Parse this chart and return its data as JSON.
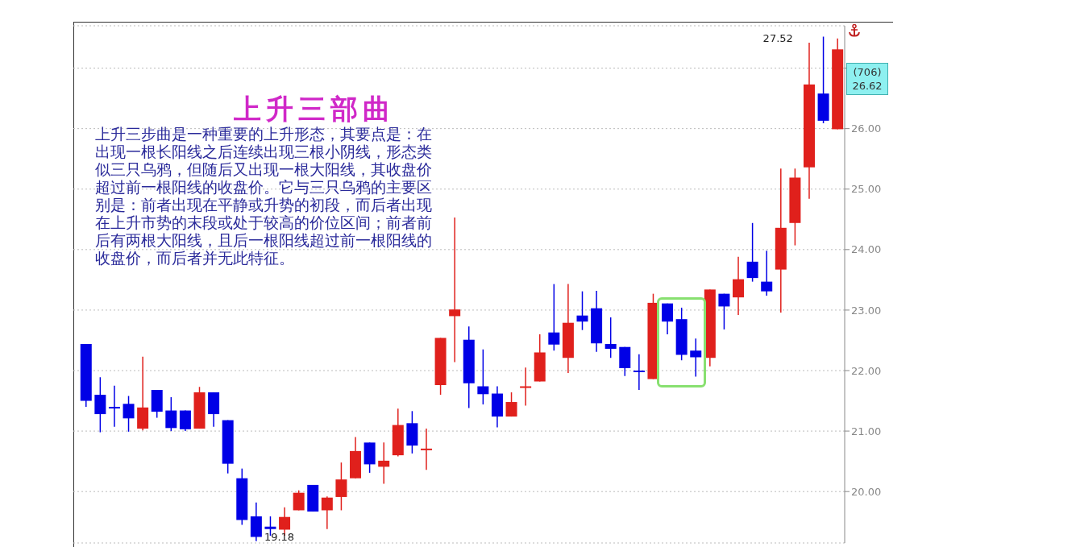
{
  "chart_data": {
    "type": "candlestick",
    "title": "上升三部曲",
    "categories": [
      null,
      null,
      null,
      null,
      null,
      null,
      null,
      null,
      null,
      null,
      null,
      null,
      null,
      null,
      null,
      null,
      null,
      null,
      null,
      null,
      null,
      null,
      null,
      null,
      null,
      null,
      null,
      null,
      null,
      null,
      null,
      null,
      null,
      null,
      null,
      null,
      null,
      null,
      null,
      null,
      null,
      null,
      null,
      null,
      null,
      null,
      null,
      null,
      null,
      null,
      null,
      null,
      null,
      null
    ],
    "ohlc": [
      [
        22.44,
        22.44,
        21.4,
        21.5
      ],
      [
        21.6,
        21.89,
        20.98,
        21.28
      ],
      [
        21.4,
        21.75,
        21.07,
        21.4
      ],
      [
        21.45,
        21.58,
        20.99,
        21.21
      ],
      [
        21.04,
        22.23,
        21.01,
        21.39
      ],
      [
        21.68,
        21.68,
        21.22,
        21.32
      ],
      [
        21.34,
        21.56,
        21.0,
        21.05
      ],
      [
        21.34,
        21.34,
        21.0,
        21.03
      ],
      [
        21.04,
        21.73,
        21.04,
        21.64
      ],
      [
        21.64,
        21.64,
        21.07,
        21.28
      ],
      [
        21.18,
        21.18,
        20.3,
        20.46
      ],
      [
        20.22,
        20.38,
        19.45,
        19.53
      ],
      [
        19.59,
        19.82,
        19.18,
        19.25
      ],
      [
        19.42,
        19.59,
        19.27,
        19.38
      ],
      [
        19.37,
        19.74,
        19.27,
        19.58
      ],
      [
        19.69,
        20.02,
        19.69,
        19.98
      ],
      [
        20.11,
        20.11,
        19.67,
        19.67
      ],
      [
        19.69,
        19.92,
        19.38,
        19.9
      ],
      [
        19.91,
        20.48,
        19.69,
        20.2
      ],
      [
        20.22,
        20.9,
        20.22,
        20.67
      ],
      [
        20.81,
        20.81,
        20.31,
        20.45
      ],
      [
        20.41,
        20.81,
        20.13,
        20.51
      ],
      [
        20.6,
        21.37,
        20.58,
        21.1
      ],
      [
        21.13,
        21.33,
        20.63,
        20.76
      ],
      [
        20.71,
        21.04,
        20.36,
        20.71
      ],
      [
        21.76,
        22.54,
        21.6,
        22.54
      ],
      [
        22.9,
        24.53,
        22.14,
        23.01
      ],
      [
        22.51,
        22.73,
        21.38,
        21.79
      ],
      [
        21.74,
        22.35,
        21.44,
        21.61
      ],
      [
        21.62,
        21.74,
        21.06,
        21.24
      ],
      [
        21.24,
        21.64,
        21.24,
        21.48
      ],
      [
        21.74,
        22.05,
        21.42,
        21.74
      ],
      [
        21.82,
        22.6,
        21.82,
        22.3
      ],
      [
        22.63,
        23.43,
        22.33,
        22.43
      ],
      [
        22.21,
        23.43,
        21.96,
        22.79
      ],
      [
        22.91,
        23.31,
        22.67,
        22.81
      ],
      [
        23.03,
        23.32,
        22.31,
        22.45
      ],
      [
        22.44,
        22.88,
        22.21,
        22.36
      ],
      [
        22.39,
        22.39,
        21.91,
        22.04
      ],
      [
        22.0,
        22.27,
        21.68,
        22.0
      ],
      [
        21.86,
        23.27,
        21.86,
        23.12
      ],
      [
        23.11,
        23.11,
        22.6,
        22.81
      ],
      [
        22.85,
        23.04,
        22.17,
        22.26
      ],
      [
        22.33,
        22.53,
        21.9,
        22.22
      ],
      [
        22.21,
        23.34,
        22.07,
        23.34
      ],
      [
        23.27,
        23.27,
        22.68,
        23.06
      ],
      [
        23.21,
        23.88,
        22.92,
        23.51
      ],
      [
        23.8,
        24.44,
        23.47,
        23.53
      ],
      [
        23.47,
        23.98,
        23.24,
        23.31
      ],
      [
        23.67,
        25.34,
        22.96,
        24.36
      ],
      [
        24.44,
        25.34,
        24.07,
        25.19
      ],
      [
        25.36,
        27.42,
        24.84,
        26.73
      ],
      [
        26.58,
        27.52,
        26.09,
        26.13
      ],
      [
        25.99,
        27.49,
        25.99,
        27.31
      ]
    ],
    "colors": [
      "#0000e6",
      "#0000e6",
      "#0000e6",
      "#0000e6",
      "#e0201c",
      "#0000e6",
      "#0000e6",
      "#0000e6",
      "#e0201c",
      "#0000e6",
      "#0000e6",
      "#0000e6",
      "#0000e6",
      "#0000e6",
      "#e0201c",
      "#e0201c",
      "#0000e6",
      "#e0201c",
      "#e0201c",
      "#e0201c",
      "#0000e6",
      "#e0201c",
      "#e0201c",
      "#0000e6",
      "#e0201c",
      "#e0201c",
      "#e0201c",
      "#0000e6",
      "#0000e6",
      "#0000e6",
      "#e0201c",
      "#e0201c",
      "#e0201c",
      "#0000e6",
      "#e0201c",
      "#0000e6",
      "#0000e6",
      "#0000e6",
      "#0000e6",
      "#0000e6",
      "#e0201c",
      "#0000e6",
      "#0000e6",
      "#0000e6",
      "#e0201c",
      "#0000e6",
      "#e0201c",
      "#0000e6",
      "#0000e6",
      "#e0201c",
      "#e0201c",
      "#e0201c",
      "#0000e6",
      "#e0201c"
    ],
    "ylim": [
      19.15,
      27.7
    ],
    "yticks": [
      {
        "value": 20,
        "label": "20.00"
      },
      {
        "value": 21,
        "label": "21.00"
      },
      {
        "value": 22,
        "label": "22.00"
      },
      {
        "value": 23,
        "label": "23.00"
      },
      {
        "value": 24,
        "label": "24.00"
      },
      {
        "value": 25,
        "label": "25.00"
      },
      {
        "value": 26,
        "label": "26.00"
      },
      {
        "value": 27,
        "label": null
      }
    ],
    "grid": "y",
    "annotations": [
      "上升三步曲是一种重要的上升形态，其要点是：在出现一根长阳线之后连续出现三根小阴线，形态类似三只乌鸦，但随后又出现一根大阳线，其收盘价超过前一根阳线的收盘价。它与三只乌鸦的主要区别是：前者出现在平静或升势的初段，而后者出现在上升市势的末段或处于较高的价位区间；前者前后有两根大阳线，且后一根阳线超过前一根阳线的收盘价，而后者并无此特征。",
      "19.18",
      "27.52",
      "(706) 26.62"
    ]
  }
}
